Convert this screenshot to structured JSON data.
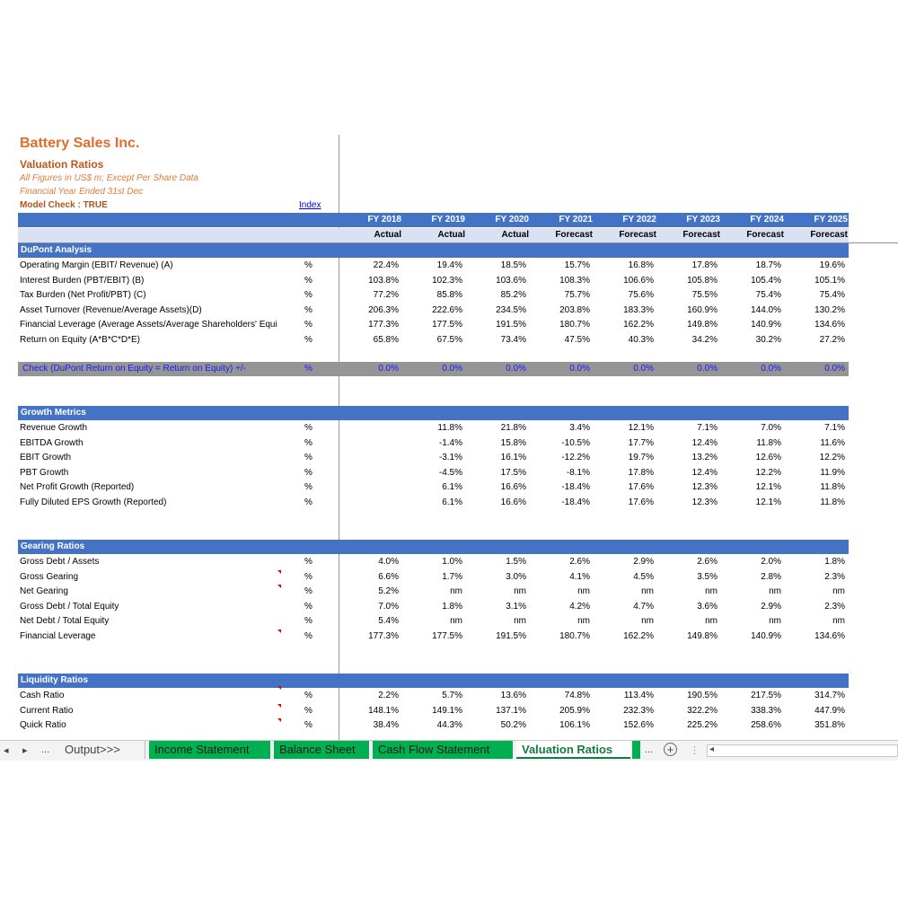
{
  "company": "Battery Sales Inc.",
  "sheet_title": "Valuation Ratios",
  "notes": [
    "All Figures in US$ m; Except Per Share Data",
    "Financial Year Ended 31st Dec"
  ],
  "model_check": "Model Check : TRUE",
  "index_link": "Index",
  "years": [
    "FY 2018",
    "FY 2019",
    "FY 2020",
    "FY 2021",
    "FY 2022",
    "FY 2023",
    "FY 2024",
    "FY 2025"
  ],
  "periods": [
    "Actual",
    "Actual",
    "Actual",
    "Forecast",
    "Forecast",
    "Forecast",
    "Forecast",
    "Forecast"
  ],
  "sections": [
    {
      "title": "DuPont Analysis",
      "rows": [
        {
          "label": "Operating Margin (EBIT/ Revenue) (A)",
          "unit": "%",
          "values": [
            "22.4%",
            "19.4%",
            "18.5%",
            "15.7%",
            "16.8%",
            "17.8%",
            "18.7%",
            "19.6%"
          ]
        },
        {
          "label": "Interest Burden (PBT/EBIT) (B)",
          "unit": "%",
          "values": [
            "103.8%",
            "102.3%",
            "103.6%",
            "108.3%",
            "106.6%",
            "105.8%",
            "105.4%",
            "105.1%"
          ]
        },
        {
          "label": "Tax Burden (Net Profit/PBT) (C)",
          "unit": "%",
          "values": [
            "77.2%",
            "85.8%",
            "85.2%",
            "75.7%",
            "75.6%",
            "75.5%",
            "75.4%",
            "75.4%"
          ]
        },
        {
          "label": "Asset Turnover (Revenue/Average Assets)(D)",
          "unit": "%",
          "values": [
            "206.3%",
            "222.6%",
            "234.5%",
            "203.8%",
            "183.3%",
            "160.9%",
            "144.0%",
            "130.2%"
          ]
        },
        {
          "label": "Financial Leverage (Average Assets/Average Shareholders' Equi",
          "unit": "%",
          "values": [
            "177.3%",
            "177.5%",
            "191.5%",
            "180.7%",
            "162.2%",
            "149.8%",
            "140.9%",
            "134.6%"
          ]
        },
        {
          "label": "Return on Equity (A*B*C*D*E)",
          "unit": "%",
          "values": [
            "65.8%",
            "67.5%",
            "73.4%",
            "47.5%",
            "40.3%",
            "34.2%",
            "30.2%",
            "27.2%"
          ]
        }
      ]
    },
    {
      "title": "Growth Metrics",
      "rows": [
        {
          "label": "Revenue Growth",
          "unit": "%",
          "values": [
            "",
            "11.8%",
            "21.8%",
            "3.4%",
            "12.1%",
            "7.1%",
            "7.0%",
            "7.1%"
          ]
        },
        {
          "label": "EBITDA Growth",
          "unit": "%",
          "values": [
            "",
            "-1.4%",
            "15.8%",
            "-10.5%",
            "17.7%",
            "12.4%",
            "11.8%",
            "11.6%"
          ]
        },
        {
          "label": "EBIT Growth",
          "unit": "%",
          "values": [
            "",
            "-3.1%",
            "16.1%",
            "-12.2%",
            "19.7%",
            "13.2%",
            "12.6%",
            "12.2%"
          ]
        },
        {
          "label": "PBT Growth",
          "unit": "%",
          "values": [
            "",
            "-4.5%",
            "17.5%",
            "-8.1%",
            "17.8%",
            "12.4%",
            "12.2%",
            "11.9%"
          ]
        },
        {
          "label": "Net Profit Growth (Reported)",
          "unit": "%",
          "values": [
            "",
            "6.1%",
            "16.6%",
            "-18.4%",
            "17.6%",
            "12.3%",
            "12.1%",
            "11.8%"
          ]
        },
        {
          "label": "Fully Diluted EPS Growth (Reported)",
          "unit": "%",
          "values": [
            "",
            "6.1%",
            "16.6%",
            "-18.4%",
            "17.6%",
            "12.3%",
            "12.1%",
            "11.8%"
          ]
        }
      ]
    },
    {
      "title": "Gearing Ratios",
      "rows": [
        {
          "label": "Gross Debt / Assets",
          "unit": "%",
          "values": [
            "4.0%",
            "1.0%",
            "1.5%",
            "2.6%",
            "2.9%",
            "2.6%",
            "2.0%",
            "1.8%"
          ]
        },
        {
          "label": "Gross Gearing",
          "unit": "%",
          "values": [
            "6.6%",
            "1.7%",
            "3.0%",
            "4.1%",
            "4.5%",
            "3.5%",
            "2.8%",
            "2.3%"
          ]
        },
        {
          "label": "Net Gearing",
          "unit": "%",
          "values": [
            "5.2%",
            "nm",
            "nm",
            "nm",
            "nm",
            "nm",
            "nm",
            "nm"
          ]
        },
        {
          "label": "Gross Debt / Total Equity",
          "unit": "%",
          "values": [
            "7.0%",
            "1.8%",
            "3.1%",
            "4.2%",
            "4.7%",
            "3.6%",
            "2.9%",
            "2.3%"
          ]
        },
        {
          "label": "Net Debt / Total Equity",
          "unit": "%",
          "values": [
            "5.4%",
            "nm",
            "nm",
            "nm",
            "nm",
            "nm",
            "nm",
            "nm"
          ]
        },
        {
          "label": "Financial Leverage",
          "unit": "%",
          "values": [
            "177.3%",
            "177.5%",
            "191.5%",
            "180.7%",
            "162.2%",
            "149.8%",
            "140.9%",
            "134.6%"
          ]
        }
      ]
    },
    {
      "title": "Liquidity Ratios",
      "rows": [
        {
          "label": "Cash Ratio",
          "unit": "%",
          "values": [
            "2.2%",
            "5.7%",
            "13.6%",
            "74.8%",
            "113.4%",
            "190.5%",
            "217.5%",
            "314.7%"
          ]
        },
        {
          "label": "Current Ratio",
          "unit": "%",
          "values": [
            "148.1%",
            "149.1%",
            "137.1%",
            "205.9%",
            "232.3%",
            "322.2%",
            "338.3%",
            "447.9%"
          ]
        },
        {
          "label": "Quick Ratio",
          "unit": "%",
          "values": [
            "38.4%",
            "44.3%",
            "50.2%",
            "106.1%",
            "152.6%",
            "225.2%",
            "258.6%",
            "351.8%"
          ]
        }
      ]
    }
  ],
  "check_row": {
    "label": "Check (DuPont Return on Equity = Return on Equity) +/-",
    "unit": "%",
    "values": [
      "0.0%",
      "0.0%",
      "0.0%",
      "0.0%",
      "0.0%",
      "0.0%",
      "0.0%",
      "0.0%"
    ]
  },
  "tabs": {
    "prev": "◂",
    "next": "▸",
    "more_left": "...",
    "items": [
      "Output>>>",
      "Income Statement",
      "Balance Sheet",
      "Cash Flow Statement",
      "Valuation Ratios"
    ],
    "more_right": "...",
    "add": "+",
    "scroll_left": "◂"
  },
  "colors": {
    "accent": "#4472c4",
    "title": "#e46c2a",
    "tab_green": "#00b050",
    "active_tab_text": "#107c41"
  }
}
